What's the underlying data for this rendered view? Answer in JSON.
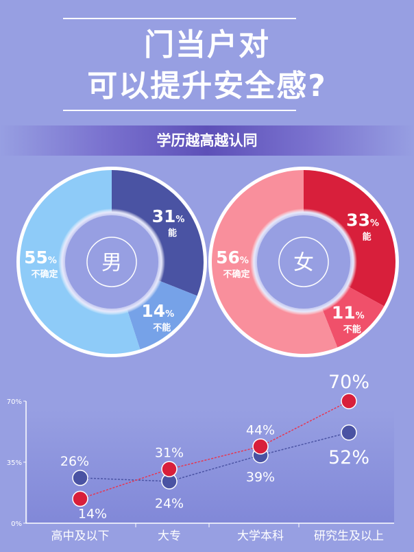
{
  "header": {
    "title_line1": "门当户对",
    "title_line2": "可以提升安全感?",
    "subtitle": "学历越高越认同"
  },
  "colors": {
    "background": "#979fe2",
    "male_dark": "#4a53a3",
    "female_red": "#d81f3b"
  },
  "chart_data": [
    {
      "type": "pie",
      "title": "男",
      "slices": [
        {
          "label": "能",
          "value": 31,
          "color": "#4a53a3"
        },
        {
          "label": "不能",
          "value": 14,
          "color": "#76a2e8"
        },
        {
          "label": "不确定",
          "value": 55,
          "color": "#8ecbf8"
        }
      ]
    },
    {
      "type": "pie",
      "title": "女",
      "slices": [
        {
          "label": "能",
          "value": 33,
          "color": "#d81f3b"
        },
        {
          "label": "不能",
          "value": 11,
          "color": "#f0506a"
        },
        {
          "label": "不确定",
          "value": 56,
          "color": "#f98f9c"
        }
      ]
    },
    {
      "type": "line",
      "categories": [
        "高中及以下",
        "大专",
        "大学本科",
        "研究生及以上"
      ],
      "yticks": [
        "0%",
        "35%",
        "70%"
      ],
      "ylim": [
        0,
        70
      ],
      "series": [
        {
          "name": "男",
          "values": [
            26,
            24,
            39,
            52
          ],
          "labels": [
            "26%",
            "24%",
            "39%",
            "52%"
          ],
          "color": "#4a53a3"
        },
        {
          "name": "女",
          "values": [
            14,
            31,
            44,
            70
          ],
          "labels": [
            "14%",
            "31%",
            "44%",
            "70%"
          ],
          "color": "#d81f3b"
        }
      ]
    }
  ]
}
